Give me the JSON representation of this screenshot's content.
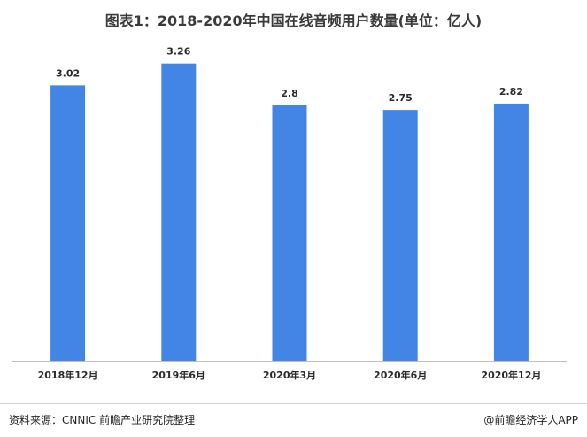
{
  "chart_data": {
    "type": "bar",
    "title": "图表1：2018-2020年中国在线音频用户数量(单位：亿人)",
    "xlabel": "",
    "ylabel": "",
    "categories": [
      "2018年12月",
      "2019年6月",
      "2020年3月",
      "2020年6月",
      "2020年12月"
    ],
    "values": [
      3.02,
      3.26,
      2.8,
      2.75,
      2.82
    ],
    "value_labels": [
      "3.02",
      "3.26",
      "2.8",
      "2.75",
      "2.82"
    ],
    "ylim": [
      0,
      3.5
    ],
    "grid": false,
    "legend": "none",
    "bar_color": "#4285e4"
  },
  "footer": {
    "source": "资料来源：CNNIC 前瞻产业研究院整理",
    "credit": "@前瞻经济学人APP"
  }
}
